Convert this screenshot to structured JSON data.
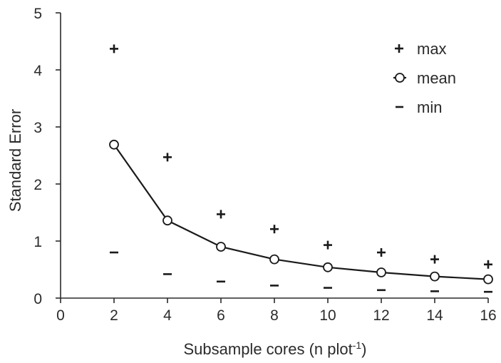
{
  "chart_data": {
    "type": "scatter",
    "xlabel": "Subsample cores (n plot",
    "xlabel_superscript": "-1",
    "xlabel_suffix": ")",
    "ylabel": "Standard Error",
    "xlim": [
      0,
      16
    ],
    "ylim": [
      0,
      5
    ],
    "x_ticks": [
      "0",
      "2",
      "4",
      "6",
      "8",
      "10",
      "12",
      "14",
      "16"
    ],
    "y_ticks": [
      "0",
      "1",
      "2",
      "3",
      "4",
      "5"
    ],
    "grid": false,
    "legend_position": "top-right",
    "x": [
      2,
      4,
      6,
      8,
      10,
      12,
      14,
      16
    ],
    "series": [
      {
        "name": "max",
        "style": "plus-marker",
        "values": [
          4.37,
          2.47,
          1.47,
          1.21,
          0.93,
          0.8,
          0.68,
          0.59
        ]
      },
      {
        "name": "mean",
        "style": "line-with-open-circles",
        "values": [
          2.69,
          1.36,
          0.9,
          0.68,
          0.54,
          0.45,
          0.38,
          0.33
        ]
      },
      {
        "name": "min",
        "style": "dash-marker",
        "values": [
          0.8,
          0.42,
          0.29,
          0.22,
          0.18,
          0.14,
          0.12,
          0.11
        ]
      }
    ]
  }
}
